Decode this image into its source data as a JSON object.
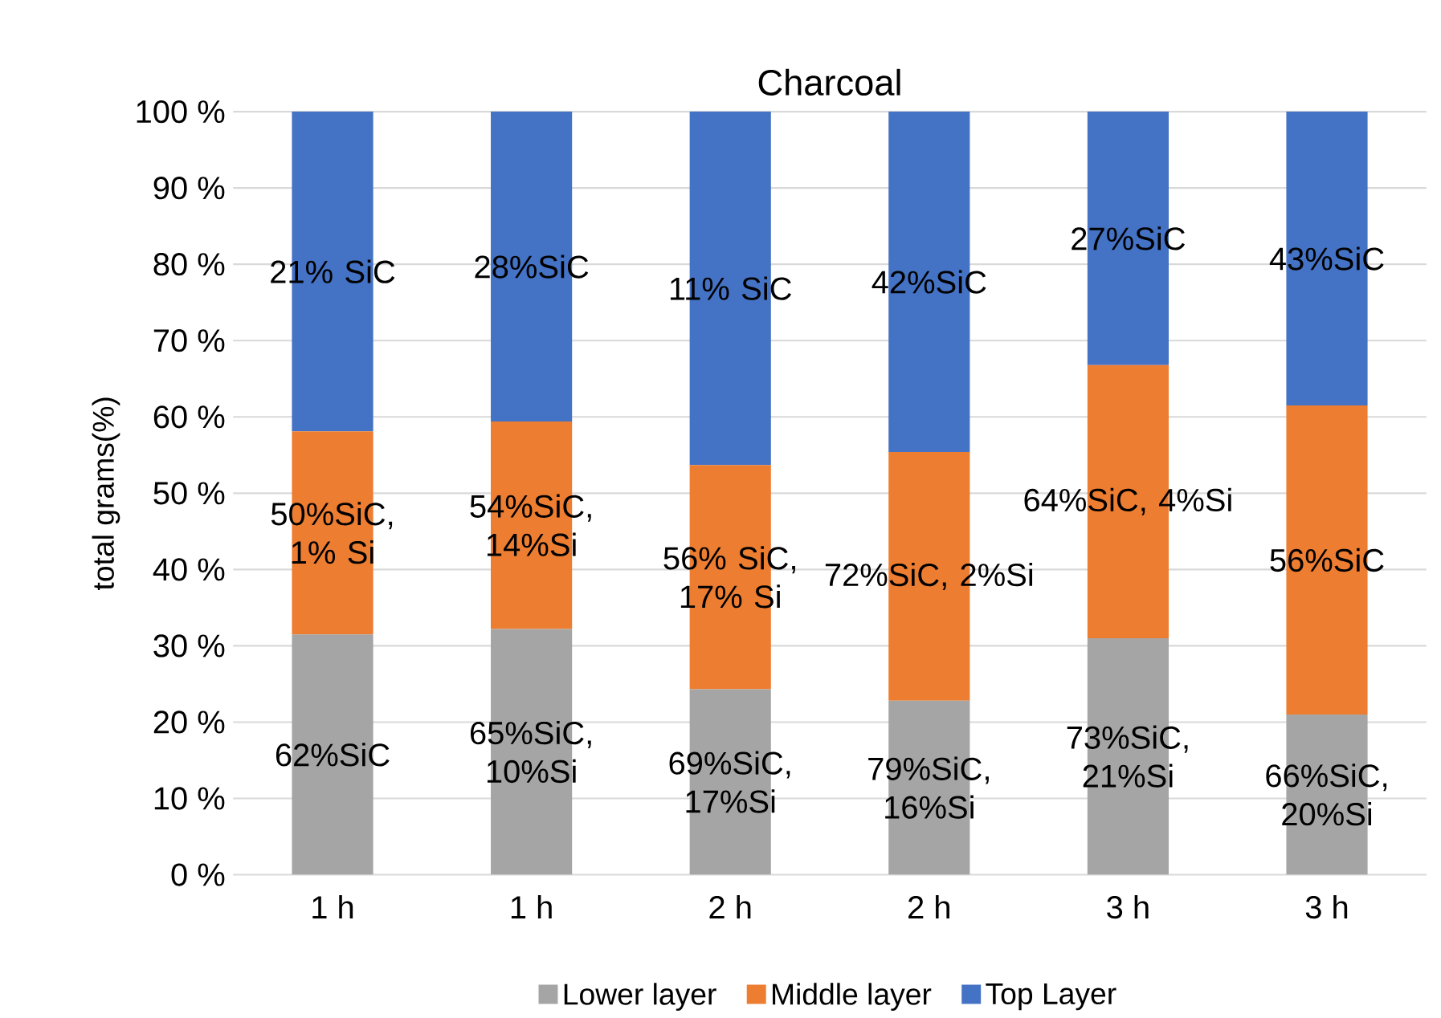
{
  "chart_data": {
    "type": "bar",
    "stacked": true,
    "title": "Charcoal",
    "ylabel": "total grams(%)",
    "categories": [
      "1 h",
      "1 h",
      "2 h",
      "2 h",
      "3 h",
      "3 h"
    ],
    "series": [
      {
        "name": "Lower layer",
        "color": "#a5a5a5",
        "values": [
          31.5,
          32.2,
          24.3,
          22.8,
          31.0,
          21.0
        ]
      },
      {
        "name": "Middle layer",
        "color": "#ed7d31",
        "values": [
          26.6,
          27.2,
          29.4,
          32.6,
          35.8,
          40.5
        ]
      },
      {
        "name": "Top Layer",
        "color": "#4472c4",
        "values": [
          41.9,
          40.6,
          46.3,
          44.6,
          33.2,
          38.5
        ]
      }
    ],
    "annotations": [
      "62%SiC",
      "50%SiC, 1% Si",
      "21% SiC",
      "65%SiC, 10%Si",
      "54%SiC, 14%Si",
      "28%SiC",
      "69%SiC, 17%Si",
      "56% SiC, 17% Si",
      "11% SiC",
      "79%SiC, 16%Si",
      "72%SiC, 2%Si",
      "42%SiC",
      "73%SiC, 21%Si",
      "64%SiC, 4%Si",
      "27%SiC",
      "66%SiC, 20%Si",
      "56%SiC",
      "43%SiC"
    ],
    "ylim": [
      0,
      100
    ],
    "yticks": [
      {
        "value": 0,
        "label": "0 %"
      },
      {
        "value": 10,
        "label": "10 %"
      },
      {
        "value": 20,
        "label": "20 %"
      },
      {
        "value": 30,
        "label": "30 %"
      },
      {
        "value": 40,
        "label": "40 %"
      },
      {
        "value": 50,
        "label": "50 %"
      },
      {
        "value": 60,
        "label": "60 %"
      },
      {
        "value": 70,
        "label": "70 %"
      },
      {
        "value": 80,
        "label": "80 %"
      },
      {
        "value": 90,
        "label": "90 %"
      },
      {
        "value": 100,
        "label": "100 %"
      }
    ],
    "grid": "y",
    "legend": "bottom"
  }
}
